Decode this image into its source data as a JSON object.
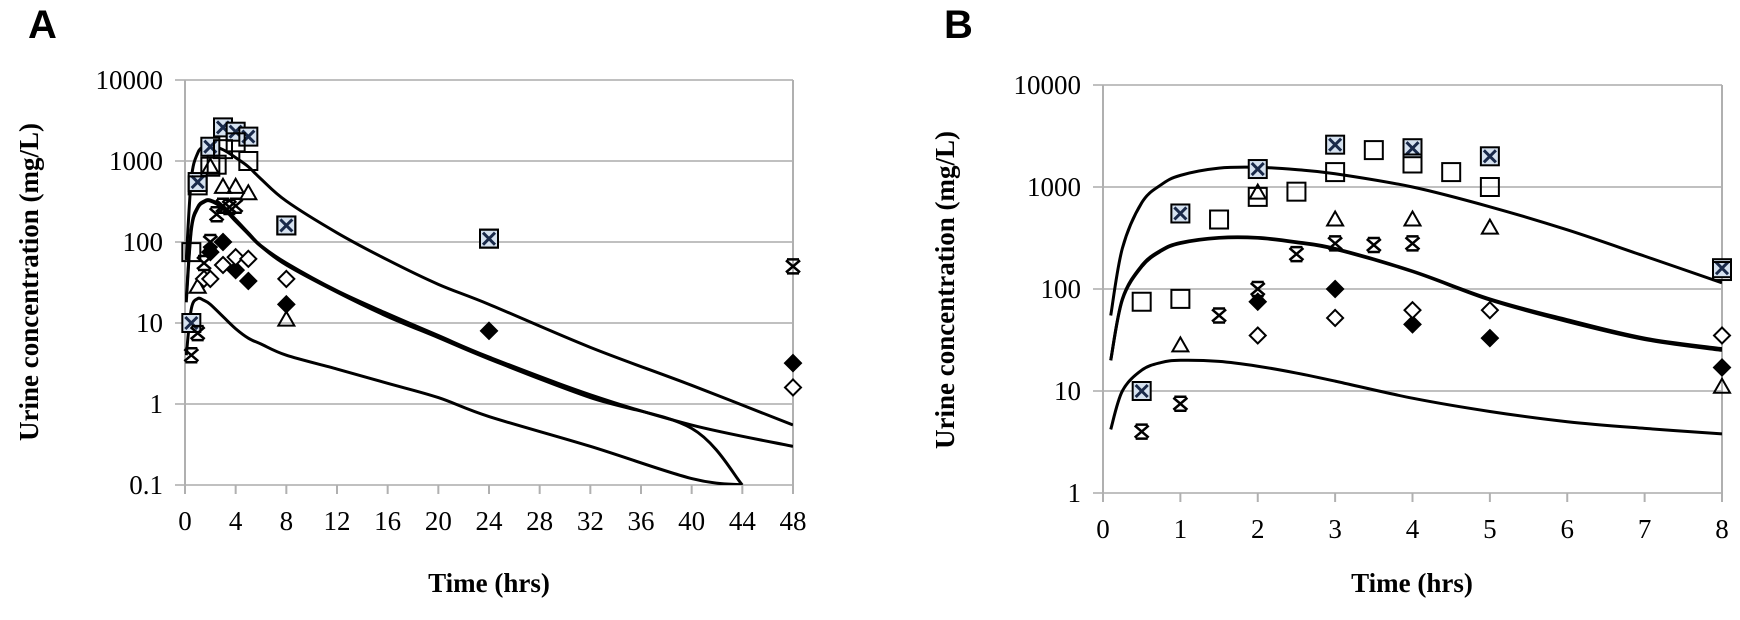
{
  "chart_data": [
    {
      "panel": "A",
      "type": "scatter",
      "xlabel": "Time (hrs)",
      "ylabel": "Urine concentration (mg/L)",
      "yscale": "log",
      "xlim": [
        0,
        48
      ],
      "ylim": [
        0.1,
        10000
      ],
      "xticks": [
        "0",
        "4",
        "8",
        "12",
        "16",
        "20",
        "24",
        "28",
        "32",
        "36",
        "40",
        "44",
        "48"
      ],
      "yticks": [
        "0.1",
        "1",
        "10",
        "100",
        "1000",
        "10000"
      ],
      "grid": true,
      "series": [
        {
          "name": "crossed-square",
          "marker": "crossed-square",
          "x": [
            0.5,
            1,
            2,
            3,
            4,
            5,
            8,
            24
          ],
          "y": [
            10,
            550,
            1500,
            2600,
            2300,
            2000,
            160,
            110
          ]
        },
        {
          "name": "open-square",
          "marker": "square",
          "x": [
            0.5,
            1,
            2,
            2.5,
            3,
            4,
            5,
            8,
            24
          ],
          "y": [
            75,
            500,
            850,
            900,
            1400,
            1700,
            1000,
            160,
            110
          ]
        },
        {
          "name": "triangle",
          "marker": "triangle",
          "x": [
            1,
            2,
            3,
            4,
            5,
            8
          ],
          "y": [
            28,
            850,
            480,
            480,
            400,
            11
          ]
        },
        {
          "name": "star",
          "marker": "star",
          "x": [
            0.5,
            1,
            1.5,
            2,
            2.5,
            3,
            3.5,
            4,
            48
          ],
          "y": [
            4,
            7.5,
            55,
            100,
            220,
            280,
            270,
            280,
            50
          ]
        },
        {
          "name": "filled-diamond",
          "marker": "filled-diamond",
          "x": [
            2,
            3,
            4,
            5,
            8,
            24,
            48
          ],
          "y": [
            75,
            100,
            45,
            33,
            17,
            8,
            3.2
          ]
        },
        {
          "name": "open-diamond",
          "marker": "open-diamond",
          "x": [
            1.5,
            2,
            3,
            4,
            5,
            8,
            48
          ],
          "y": [
            35,
            35,
            52,
            65,
            62,
            35,
            1.6
          ]
        }
      ],
      "model_curves": [
        {
          "name": "model-1",
          "x": [
            0.1,
            0.5,
            1,
            1.5,
            2,
            3,
            4,
            5,
            6,
            8,
            12,
            16,
            20,
            24,
            32,
            40,
            48
          ],
          "y": [
            60,
            600,
            1250,
            1500,
            1550,
            1380,
            1100,
            850,
            600,
            320,
            130,
            60,
            30,
            17,
            5,
            1.7,
            0.55
          ]
        },
        {
          "name": "model-2",
          "x": [
            0.1,
            0.5,
            1,
            1.5,
            2,
            3,
            4,
            5,
            6,
            8,
            12,
            16,
            20,
            24,
            32,
            40,
            48
          ],
          "y": [
            20,
            150,
            270,
            320,
            330,
            270,
            190,
            130,
            90,
            55,
            25,
            13,
            7,
            3.8,
            1.3,
            0.55,
            0.3
          ]
        },
        {
          "name": "model-3",
          "x": [
            0.1,
            0.5,
            1,
            1.5,
            2,
            3,
            4,
            5,
            6,
            8,
            12,
            16,
            20,
            24,
            32,
            40,
            44
          ],
          "y": [
            18,
            140,
            260,
            310,
            320,
            260,
            180,
            125,
            88,
            52,
            24,
            12,
            6.6,
            3.6,
            1.2,
            0.5,
            0.1
          ]
        },
        {
          "name": "model-4",
          "x": [
            0.1,
            0.5,
            1,
            1.5,
            2,
            3,
            4,
            5,
            6,
            8,
            12,
            16,
            20,
            24,
            32,
            40,
            44
          ],
          "y": [
            4,
            15,
            20,
            19,
            17,
            12,
            8.5,
            6.5,
            5.5,
            4,
            2.7,
            1.8,
            1.2,
            0.7,
            0.3,
            0.12,
            0.1
          ]
        }
      ]
    },
    {
      "panel": "B",
      "type": "scatter",
      "xlabel": "Time (hrs)",
      "ylabel": "Urine concentration (mg/L)",
      "yscale": "log",
      "xlim": [
        0,
        8
      ],
      "ylim": [
        1,
        10000
      ],
      "xticks": [
        "0",
        "1",
        "2",
        "3",
        "4",
        "5",
        "6",
        "7",
        "8"
      ],
      "yticks": [
        "1",
        "10",
        "100",
        "1000",
        "10000"
      ],
      "grid": true,
      "series": [
        {
          "name": "crossed-square",
          "marker": "crossed-square",
          "x": [
            0.5,
            1,
            2,
            3,
            4,
            5,
            8
          ],
          "y": [
            10,
            550,
            1500,
            2600,
            2400,
            2000,
            160
          ]
        },
        {
          "name": "open-square",
          "marker": "square",
          "x": [
            0.5,
            1,
            1.5,
            2,
            2.5,
            3,
            3.5,
            4,
            4.5,
            5,
            8
          ],
          "y": [
            75,
            80,
            480,
            800,
            900,
            1400,
            2300,
            1700,
            1400,
            1000,
            150
          ]
        },
        {
          "name": "triangle",
          "marker": "triangle",
          "x": [
            1,
            2,
            3,
            4,
            5,
            8
          ],
          "y": [
            28,
            880,
            480,
            480,
            400,
            11
          ]
        },
        {
          "name": "star",
          "marker": "star",
          "x": [
            0.5,
            1,
            1.5,
            2,
            2.5,
            3,
            3.5,
            4
          ],
          "y": [
            4,
            7.5,
            55,
            100,
            220,
            280,
            270,
            280
          ]
        },
        {
          "name": "filled-diamond",
          "marker": "filled-diamond",
          "x": [
            2,
            3,
            4,
            5,
            8
          ],
          "y": [
            75,
            100,
            45,
            33,
            17
          ]
        },
        {
          "name": "open-diamond",
          "marker": "open-diamond",
          "x": [
            2,
            3,
            4,
            5,
            8
          ],
          "y": [
            35,
            52,
            62,
            62,
            35
          ]
        }
      ],
      "model_curves": [
        {
          "name": "model-1",
          "x": [
            0.1,
            0.25,
            0.5,
            0.75,
            1,
            1.5,
            2,
            2.5,
            3,
            4,
            5,
            6,
            7,
            8
          ],
          "y": [
            55,
            250,
            700,
            1050,
            1300,
            1530,
            1560,
            1480,
            1350,
            1000,
            640,
            380,
            210,
            115
          ]
        },
        {
          "name": "model-2",
          "x": [
            0.1,
            0.25,
            0.5,
            0.75,
            1,
            1.5,
            2,
            2.5,
            3,
            4,
            5,
            6,
            7,
            8
          ],
          "y": [
            20,
            80,
            170,
            240,
            285,
            320,
            320,
            290,
            250,
            150,
            80,
            50,
            33,
            26
          ]
        },
        {
          "name": "model-3",
          "x": [
            0.1,
            0.25,
            0.5,
            0.75,
            1,
            1.5,
            2,
            2.5,
            3,
            4,
            5,
            6,
            7,
            8
          ],
          "y": [
            20,
            78,
            165,
            235,
            280,
            315,
            315,
            285,
            245,
            148,
            78,
            48,
            32,
            25
          ]
        },
        {
          "name": "model-4",
          "x": [
            0.1,
            0.25,
            0.5,
            0.75,
            1,
            1.5,
            2,
            2.5,
            3,
            4,
            5,
            6,
            7,
            8
          ],
          "y": [
            4.2,
            10,
            16,
            19,
            20,
            19.5,
            17.5,
            15,
            12.5,
            8.5,
            6.3,
            5,
            4.3,
            3.8
          ]
        }
      ]
    }
  ]
}
